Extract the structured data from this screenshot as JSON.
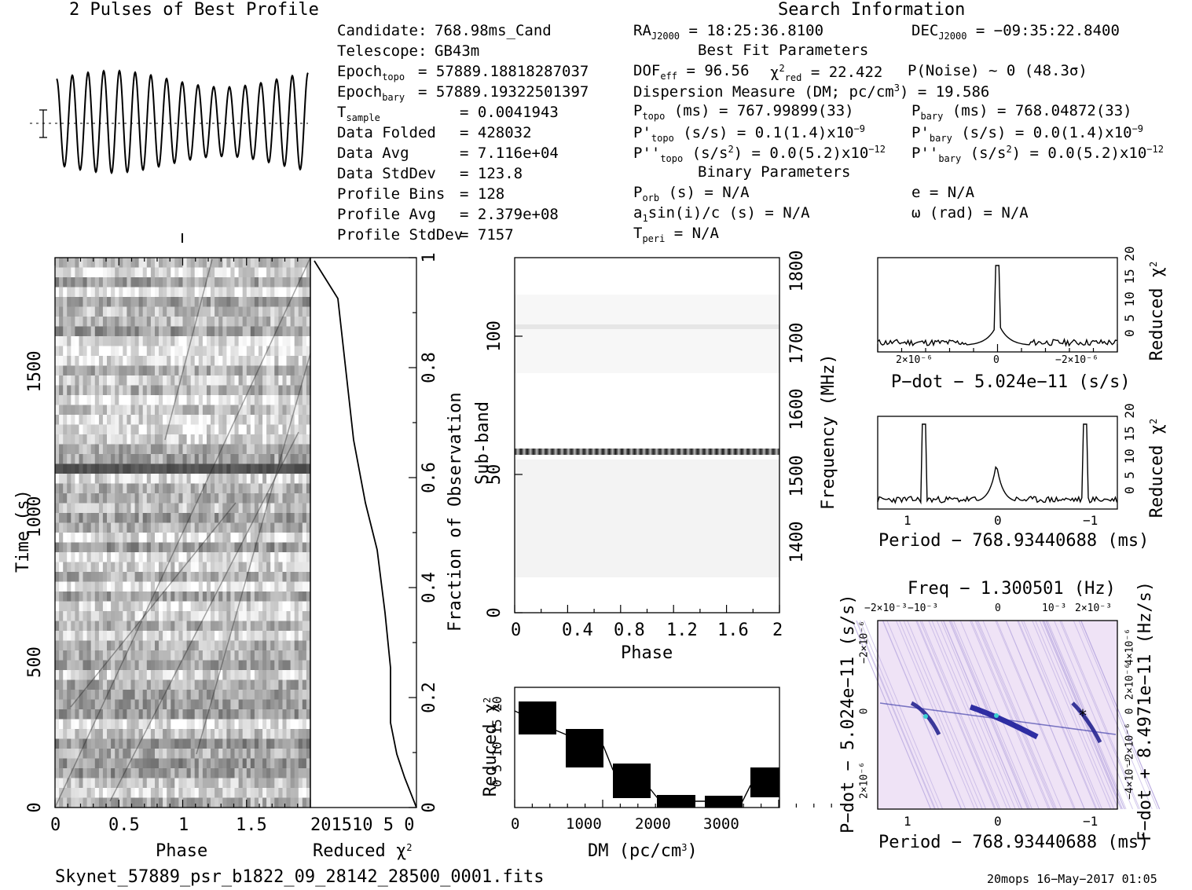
{
  "titles": {
    "profile": "2 Pulses of Best Profile",
    "search": "Search Information",
    "best_fit": "Best Fit Parameters",
    "binary": "Binary Parameters"
  },
  "info_left": [
    {
      "label": "Candidate:",
      "value": "768.98ms_Cand"
    },
    {
      "label": "Telescope:",
      "value": "GB43m"
    },
    {
      "label": "Epoch",
      "sub": "topo",
      "value": "= 57889.18818287037"
    },
    {
      "label": "Epoch",
      "sub": "bary",
      "value": "= 57889.19322501397"
    },
    {
      "label": "T",
      "sub": "sample",
      "value": "=   0.0041943"
    },
    {
      "label": "Data Folded",
      "value": "=   428032"
    },
    {
      "label": "Data Avg",
      "value": "=   7.116e+04"
    },
    {
      "label": "Data StdDev",
      "value": "=   123.8"
    },
    {
      "label": "Profile Bins",
      "value": "=   128"
    },
    {
      "label": "Profile Avg",
      "value": "=   2.379e+08"
    },
    {
      "label": "Profile StdDev",
      "value": "=   7157"
    }
  ],
  "search_info": {
    "ra": "RA",
    "ra_sub": "J2000",
    "ra_val": "= 18:25:36.8100",
    "dec": "DEC",
    "dec_sub": "J2000",
    "dec_val": "= −09:35:22.8400",
    "dof": "DOF",
    "dof_sub": "eff",
    "dof_val": "= 96.56",
    "chi": "χ",
    "chi_sup": "2",
    "chi_sub": "red",
    "chi_val": "= 22.422",
    "pnoise": "P(Noise) ~ 0   (48.3σ)",
    "dm": "Dispersion Measure (DM; pc/cm",
    "dm_sup": "3",
    "dm_val": ") = 19.586",
    "ptopo": "P",
    "ptopo_sub": "topo",
    "ptopo_val": " (ms) =  767.99899(33)",
    "pbary": "P",
    "pbary_sub": "bary",
    "pbary_val": " (ms) =  768.04872(33)",
    "pdtopo": "P'",
    "pdtopo_sub": "topo",
    "pdtopo_val": " (s/s) =  0.1(1.4)x10",
    "pdtopo_sup": "−9",
    "pdbary": "P'",
    "pdbary_sub": "bary",
    "pdbary_val": " (s/s) = 0.0(1.4)x10",
    "pdbary_sup": "−9",
    "pddtopo": "P''",
    "pddtopo_sub": "topo",
    "pddtopo_val": " (s/s",
    "pddtopo_sup1": "2",
    "pddtopo_val2": ") = 0.0(5.2)x10",
    "pddtopo_sup2": "−12",
    "pddbary": "P''",
    "pddbary_sub": "bary",
    "pddbary_val": " (s/s",
    "pddbary_sup1": "2",
    "pddbary_val2": ") = 0.0(5.2)x10",
    "pddbary_sup2": "−12",
    "porb": "P",
    "porb_sub": "orb",
    "porb_val": " (s) = N/A",
    "ecc": "e = N/A",
    "a1": "a",
    "a1_sub": "1",
    "a1_val": "sin(i)/c (s) = N/A",
    "omega": "ω (rad) = N/A",
    "tperi": "T",
    "tperi_sub": "peri",
    "tperi_val": " = N/A"
  },
  "axes": {
    "time_label": "Time (s)",
    "phase_label": "Phase",
    "redchi_label": "Reduced χ",
    "redchi_sup": "2",
    "frac_label": "Fraction of Observation",
    "subband_label": "Sub-band",
    "freq_label": "Frequency (MHz)",
    "phase2_label": "Phase",
    "dm_label": "DM (pc/cm",
    "dm_sup": "3",
    "dm_close": ")",
    "pdot_label": "P−dot − 5.024e−11 (s/s)",
    "period_label": "Period − 768.93440688 (ms)",
    "freq_top": "Freq − 1.300501 (Hz)",
    "pdot_left": "P−dot − 5.024e−11 (s/s)",
    "fdot_right": "F−dot + 8.4971e−11 (Hz/s)",
    "period_bottom": "Period − 768.93440688 (ms)"
  },
  "ticks": {
    "time": [
      "0",
      "500",
      "1000",
      "1500"
    ],
    "phase": [
      "0",
      "0.5",
      "1",
      "1.5"
    ],
    "redchi_bottom": "201510 5  0",
    "frac": [
      "0",
      "0.2",
      "0.4",
      "0.6",
      "0.8",
      "1"
    ],
    "subband": [
      "0",
      "50",
      "100"
    ],
    "phase2": [
      "0",
      "0.4",
      "0.8",
      "1.2",
      "1.6",
      "2"
    ],
    "freq": [
      "1400",
      "1500",
      "1600",
      "1700",
      "1800"
    ],
    "dm": [
      "0",
      "1000",
      "2000",
      "3000"
    ],
    "chi_dm": "0  5 10 15 20",
    "chi_right": "0  5 10 15 20",
    "pdot_x": [
      "2×10⁻⁶",
      "0",
      "−2×10⁻⁶"
    ],
    "period_x": [
      "1",
      "0",
      "−1"
    ],
    "freq_x": [
      "−2×10⁻³",
      "−10⁻³",
      "0",
      "10⁻³",
      "2×10⁻³"
    ],
    "pdot_y": [
      "−2×10⁻⁶",
      "0",
      "2×10⁻⁶"
    ],
    "fdot_y": [
      "4×10⁻⁶",
      "2×10⁻⁶",
      "0",
      "−2×10⁻⁶",
      "−4×10⁻⁶"
    ],
    "period_b": [
      "1",
      "0",
      "−1"
    ]
  },
  "footer": {
    "file": "Skynet_57889_psr_b1822_09_28142_28500_0001.fits",
    "stamp": "20mops 16−May−2017 01:05"
  }
}
